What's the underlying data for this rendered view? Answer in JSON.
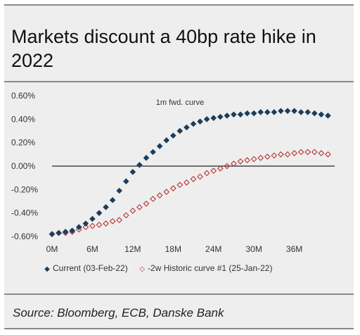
{
  "title": "Markets discount a 40bp rate hike in 2022",
  "source": "Source: Bloomberg, ECB, Danske Bank",
  "colors": {
    "current": "#1a3e5c",
    "historic": "#b83232",
    "background": "#eeeeee"
  },
  "chart_data": {
    "type": "scatter",
    "annotation": "1m fwd. curve",
    "x_ticks": [
      "0M",
      "6M",
      "12M",
      "18M",
      "24M",
      "30M",
      "36M"
    ],
    "y_ticks": [
      "0.60%",
      "0.40%",
      "0.20%",
      "0.00%",
      "-0.20%",
      "-0.40%",
      "-0.60%"
    ],
    "xlim": [
      0,
      42
    ],
    "ylim": [
      -0.6,
      0.6
    ],
    "grid": false,
    "legend_position": "bottom",
    "x": [
      0,
      1,
      2,
      3,
      4,
      5,
      6,
      7,
      8,
      9,
      10,
      11,
      12,
      13,
      14,
      15,
      16,
      17,
      18,
      19,
      20,
      21,
      22,
      23,
      24,
      25,
      26,
      27,
      28,
      29,
      30,
      31,
      32,
      33,
      34,
      35,
      36,
      37,
      38,
      39,
      40,
      41
    ],
    "series": [
      {
        "name": "Current (03-Feb-22)",
        "marker": "filled-diamond",
        "values": [
          -0.58,
          -0.57,
          -0.56,
          -0.55,
          -0.52,
          -0.49,
          -0.45,
          -0.4,
          -0.35,
          -0.29,
          -0.21,
          -0.13,
          -0.05,
          0.01,
          0.07,
          0.12,
          0.17,
          0.22,
          0.26,
          0.3,
          0.33,
          0.36,
          0.38,
          0.4,
          0.41,
          0.42,
          0.43,
          0.44,
          0.44,
          0.45,
          0.45,
          0.46,
          0.46,
          0.46,
          0.47,
          0.47,
          0.47,
          0.46,
          0.46,
          0.45,
          0.44,
          0.43
        ]
      },
      {
        "name": "-2w Historic curve #1 (25-Jan-22)",
        "marker": "hollow-diamond",
        "values": [
          -0.58,
          -0.57,
          -0.57,
          -0.56,
          -0.54,
          -0.52,
          -0.51,
          -0.5,
          -0.49,
          -0.47,
          -0.46,
          -0.42,
          -0.38,
          -0.35,
          -0.32,
          -0.28,
          -0.25,
          -0.22,
          -0.19,
          -0.16,
          -0.14,
          -0.11,
          -0.09,
          -0.06,
          -0.04,
          -0.02,
          0.0,
          0.02,
          0.04,
          0.05,
          0.06,
          0.07,
          0.08,
          0.09,
          0.1,
          0.1,
          0.11,
          0.12,
          0.12,
          0.12,
          0.11,
          0.1
        ]
      }
    ]
  }
}
